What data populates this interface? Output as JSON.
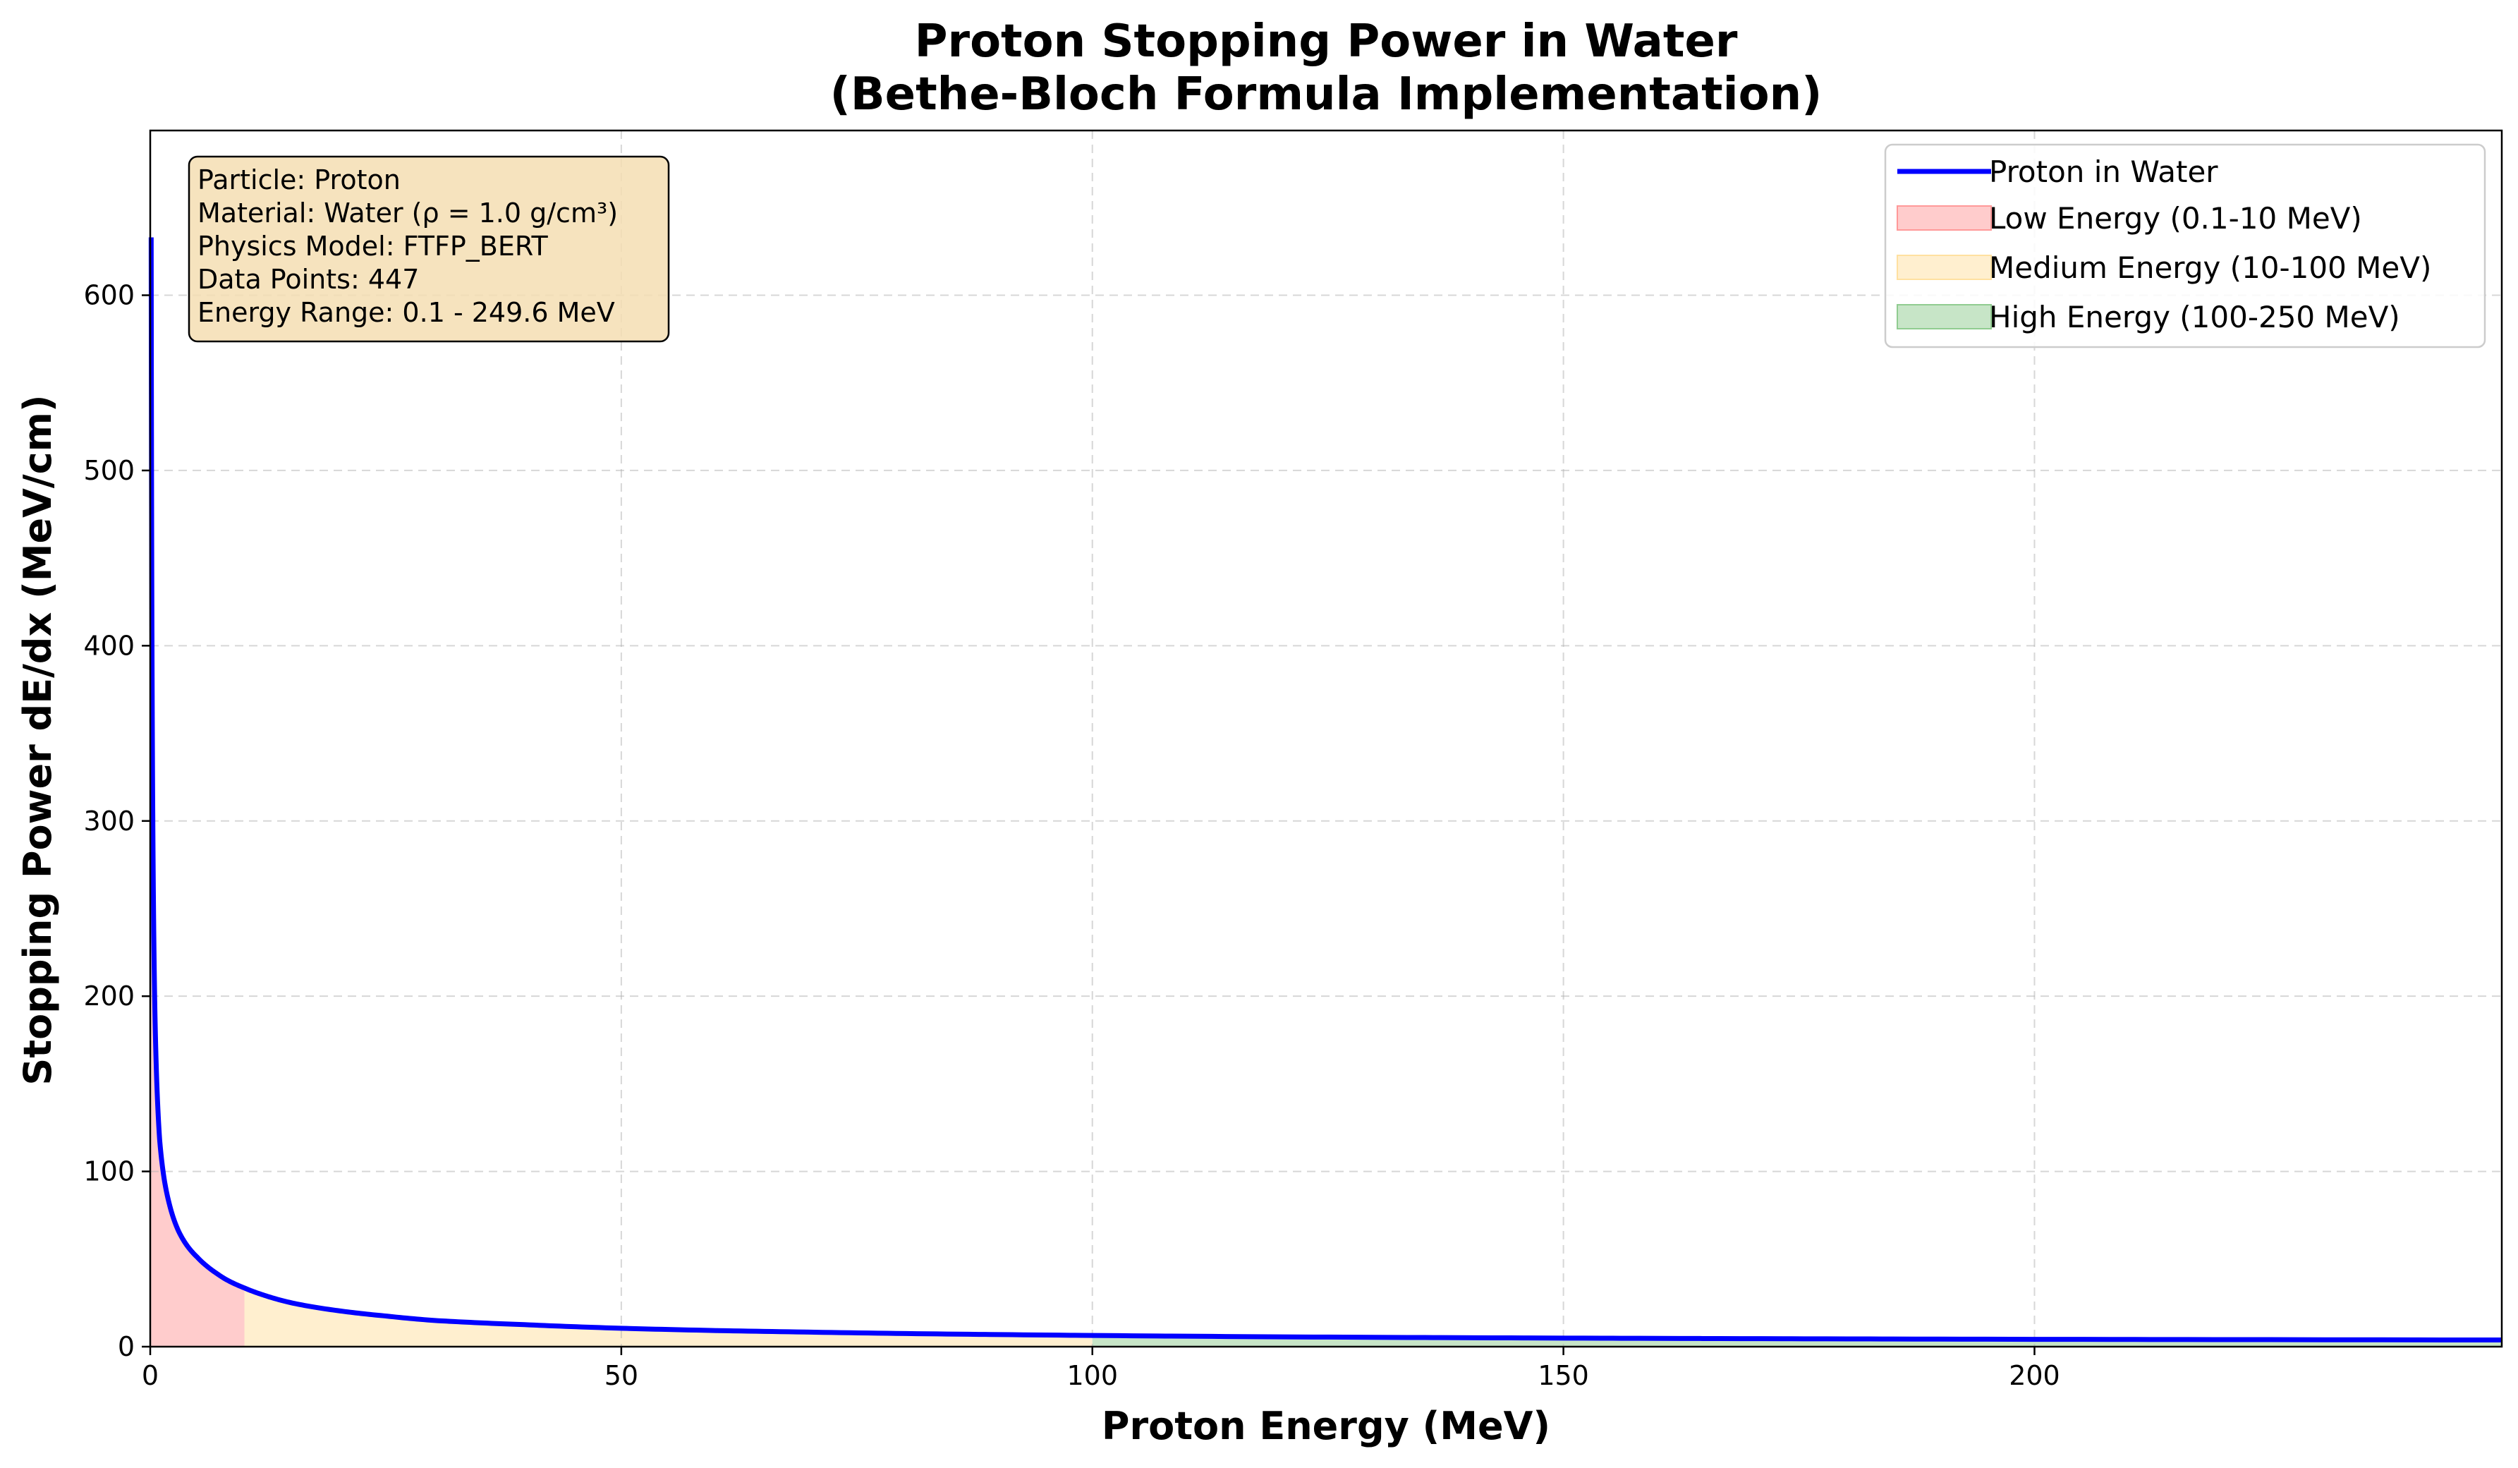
{
  "chart_data": {
    "type": "line",
    "title_line1": "Proton Stopping Power in Water",
    "title_line2": "(Bethe-Bloch Formula Implementation)",
    "xlabel": "Proton Energy (MeV)",
    "ylabel": "Stopping Power dE/dx (MeV/cm)",
    "xlim": [
      0,
      249.6
    ],
    "ylim": [
      0,
      694
    ],
    "x_ticks": [
      0,
      50,
      100,
      150,
      200
    ],
    "y_ticks": [
      0,
      100,
      200,
      300,
      400,
      500,
      600
    ],
    "grid": true,
    "legend_position": "top-right",
    "series": [
      {
        "name": "Proton in Water",
        "color": "#0000ff",
        "x": [
          0.1,
          0.15,
          0.2,
          0.3,
          0.4,
          0.5,
          0.7,
          1.0,
          1.5,
          2,
          3,
          4,
          5,
          6,
          7,
          8,
          10,
          12,
          15,
          20,
          25,
          30,
          40,
          50,
          60,
          70,
          80,
          100,
          120,
          150,
          175,
          200,
          225,
          249.6
        ],
        "y": [
          633,
          470,
          380,
          280,
          225,
          190,
          150,
          118,
          95,
          82,
          66,
          57,
          51,
          46,
          42,
          38.5,
          33.5,
          29.5,
          25,
          20.5,
          17.5,
          15,
          12.5,
          10.5,
          9.2,
          8.3,
          7.5,
          6.4,
          5.6,
          4.9,
          4.5,
          4.2,
          4.0,
          3.8
        ]
      }
    ],
    "regions": [
      {
        "name": "Low Energy (0.1-10 MeV)",
        "x_range": [
          0.1,
          10
        ],
        "color": "#ff9999"
      },
      {
        "name": "Medium Energy (10-100 MeV)",
        "x_range": [
          10,
          100
        ],
        "color": "#ffe0a0"
      },
      {
        "name": "High Energy (100-250 MeV)",
        "x_range": [
          100,
          249.6
        ],
        "color": "#90cc90"
      }
    ],
    "info_box": {
      "lines": [
        "Particle: Proton",
        "Material: Water (ρ = 1.0 g/cm³)",
        "Physics Model: FTFP_BERT",
        "Data Points: 447",
        "Energy Range: 0.1 - 249.6 MeV"
      ],
      "background": "#f5deb3"
    }
  }
}
